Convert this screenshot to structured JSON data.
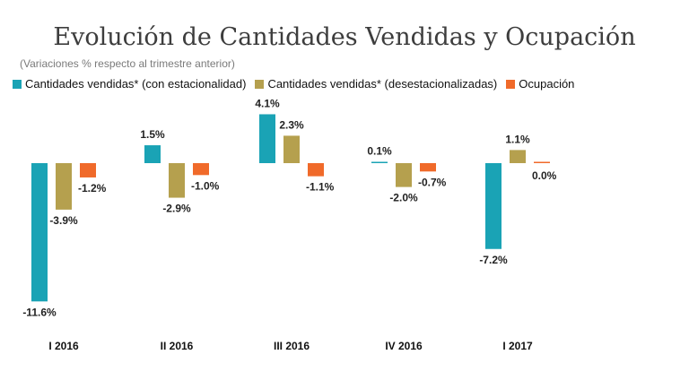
{
  "chart_data": {
    "type": "bar",
    "title": "Evolución de Cantidades Vendidas y Ocupación",
    "subtitle": "(Variaciones % respecto al trimestre anterior)",
    "categories": [
      "I 2016",
      "II 2016",
      "III 2016",
      "IV 2016",
      "I 2017"
    ],
    "series": [
      {
        "name": "Cantidades vendidas* (con estacionalidad)",
        "color": "#1aa3b5",
        "values": [
          -11.6,
          1.5,
          4.1,
          0.1,
          -7.2
        ],
        "labels": [
          "-11.6%",
          "1.5%",
          "4.1%",
          "0.1%",
          "-7.2%"
        ]
      },
      {
        "name": "Cantidades vendidas* (desestacionalizadas)",
        "color": "#b5a04e",
        "values": [
          -3.9,
          -2.9,
          2.3,
          -2.0,
          1.1
        ],
        "labels": [
          "-3.9%",
          "-2.9%",
          "2.3%",
          "-2.0%",
          "1.1%"
        ]
      },
      {
        "name": "Ocupación",
        "color": "#f06a2a",
        "values": [
          -1.2,
          -1.0,
          -1.1,
          -0.7,
          0.0
        ],
        "labels": [
          "-1.2%",
          "-1.0%",
          "-1.1%",
          "-0.7%",
          "0.0%"
        ]
      }
    ],
    "ylim": [
      -12,
      4.5
    ],
    "grid": false,
    "legend": "top-left"
  }
}
